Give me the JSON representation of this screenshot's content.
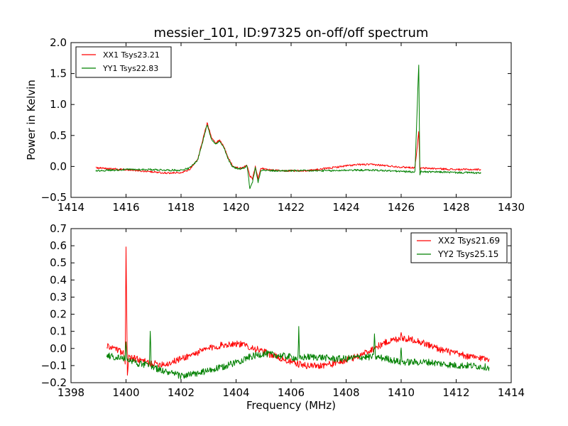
{
  "figure": {
    "title": "messier_101, ID:97325 on-off/off spectrum",
    "ylabel": "Power in Kelvin",
    "xlabel": "Frequency (MHz)"
  },
  "chart_data": [
    {
      "type": "line",
      "title": "messier_101, ID:97325 on-off/off spectrum",
      "xlabel": "",
      "ylabel": "Power in Kelvin",
      "xlim": [
        1414,
        1430
      ],
      "ylim": [
        -0.5,
        2.0
      ],
      "xticks": [
        1414,
        1416,
        1418,
        1420,
        1422,
        1424,
        1426,
        1428,
        1430
      ],
      "yticks": [
        -0.5,
        0.0,
        0.5,
        1.0,
        1.5,
        2.0
      ],
      "xtick_labels": [
        "1414",
        "1416",
        "1418",
        "1420",
        "1422",
        "1424",
        "1426",
        "1428",
        "1430"
      ],
      "ytick_labels": [
        "−0.5",
        "0.0",
        "0.5",
        "1.0",
        "1.5",
        "2.0"
      ],
      "grid": false,
      "legend": "top-left",
      "series": [
        {
          "name": "XX1 Tsys23.21",
          "color": "#ff0000",
          "x": [
            1414.9,
            1415.5,
            1416.0,
            1416.5,
            1417.0,
            1417.5,
            1418.0,
            1418.3,
            1418.6,
            1418.8,
            1418.95,
            1419.1,
            1419.25,
            1419.4,
            1419.55,
            1419.7,
            1419.85,
            1420.0,
            1420.2,
            1420.4,
            1420.5,
            1420.6,
            1420.7,
            1420.8,
            1420.9,
            1421.0,
            1421.3,
            1421.8,
            1422.5,
            1423.0,
            1423.5,
            1424.0,
            1424.5,
            1425.0,
            1425.5,
            1426.0,
            1426.5,
            1426.64,
            1426.68,
            1426.72,
            1427.0,
            1427.5,
            1428.0,
            1428.5,
            1428.9
          ],
          "y": [
            -0.02,
            -0.04,
            -0.05,
            -0.07,
            -0.09,
            -0.11,
            -0.1,
            -0.05,
            0.1,
            0.45,
            0.7,
            0.47,
            0.38,
            0.42,
            0.33,
            0.15,
            0.03,
            -0.02,
            -0.03,
            0.02,
            -0.15,
            -0.2,
            0.0,
            -0.2,
            -0.03,
            -0.04,
            -0.06,
            -0.07,
            -0.07,
            -0.05,
            -0.02,
            0.01,
            0.03,
            0.03,
            0.01,
            -0.01,
            -0.02,
            0.55,
            -0.05,
            -0.03,
            -0.03,
            -0.04,
            -0.05,
            -0.05,
            -0.05
          ]
        },
        {
          "name": "YY1 Tsys22.83",
          "color": "#008000",
          "x": [
            1414.9,
            1415.5,
            1416.0,
            1416.5,
            1417.0,
            1417.5,
            1418.0,
            1418.3,
            1418.6,
            1418.8,
            1418.95,
            1419.1,
            1419.25,
            1419.4,
            1419.55,
            1419.7,
            1419.85,
            1420.0,
            1420.2,
            1420.4,
            1420.5,
            1420.6,
            1420.7,
            1420.8,
            1420.9,
            1421.0,
            1421.3,
            1421.8,
            1422.5,
            1423.0,
            1423.5,
            1424.0,
            1424.5,
            1425.0,
            1425.5,
            1426.0,
            1426.5,
            1426.64,
            1426.68,
            1426.72,
            1427.0,
            1427.5,
            1428.0,
            1428.5,
            1428.9
          ],
          "y": [
            -0.07,
            -0.06,
            -0.05,
            -0.05,
            -0.05,
            -0.06,
            -0.06,
            -0.03,
            0.1,
            0.42,
            0.68,
            0.45,
            0.36,
            0.4,
            0.31,
            0.13,
            0.01,
            -0.03,
            -0.04,
            0.01,
            -0.35,
            -0.25,
            -0.02,
            -0.25,
            -0.06,
            -0.06,
            -0.07,
            -0.07,
            -0.07,
            -0.07,
            -0.07,
            -0.06,
            -0.06,
            -0.06,
            -0.07,
            -0.08,
            -0.09,
            1.65,
            -0.15,
            -0.08,
            -0.09,
            -0.09,
            -0.1,
            -0.1,
            -0.11
          ]
        }
      ]
    },
    {
      "type": "line",
      "title": "",
      "xlabel": "Frequency (MHz)",
      "ylabel": "",
      "xlim": [
        1398,
        1414
      ],
      "ylim": [
        -0.2,
        0.7
      ],
      "xticks": [
        1398,
        1400,
        1402,
        1404,
        1406,
        1408,
        1410,
        1412,
        1414
      ],
      "yticks": [
        -0.2,
        -0.1,
        0.0,
        0.1,
        0.2,
        0.3,
        0.4,
        0.5,
        0.6,
        0.7
      ],
      "xtick_labels": [
        "1398",
        "1400",
        "1402",
        "1404",
        "1406",
        "1408",
        "1410",
        "1412",
        "1414"
      ],
      "ytick_labels": [
        "−0.2",
        "−0.1",
        "0.0",
        "0.1",
        "0.2",
        "0.3",
        "0.4",
        "0.5",
        "0.6",
        "0.7"
      ],
      "grid": false,
      "legend": "top-right",
      "series": [
        {
          "name": "XX2 Tsys21.69",
          "color": "#ff0000",
          "x": [
            1399.3,
            1399.6,
            1399.9,
            1399.97,
            1400.0,
            1400.05,
            1400.1,
            1400.5,
            1401.0,
            1401.5,
            1402.0,
            1402.5,
            1403.0,
            1403.5,
            1404.0,
            1404.5,
            1405.0,
            1405.5,
            1406.0,
            1406.5,
            1407.0,
            1407.5,
            1408.0,
            1408.5,
            1409.0,
            1409.5,
            1409.97,
            1410.0,
            1410.03,
            1410.5,
            1411.0,
            1411.5,
            1412.0,
            1412.5,
            1413.2
          ],
          "y": [
            0.01,
            0.0,
            -0.03,
            -0.1,
            0.61,
            -0.15,
            -0.05,
            -0.07,
            -0.09,
            -0.09,
            -0.06,
            -0.03,
            0.0,
            0.02,
            0.03,
            0.01,
            -0.02,
            -0.05,
            -0.08,
            -0.1,
            -0.1,
            -0.09,
            -0.07,
            -0.04,
            0.0,
            0.04,
            0.06,
            0.11,
            0.06,
            0.05,
            0.02,
            -0.01,
            -0.03,
            -0.05,
            -0.06
          ]
        },
        {
          "name": "YY2 Tsys25.15",
          "color": "#008000",
          "x": [
            1399.3,
            1399.6,
            1399.97,
            1400.0,
            1400.03,
            1400.5,
            1400.85,
            1400.88,
            1400.91,
            1401.0,
            1401.5,
            1402.0,
            1402.5,
            1403.0,
            1403.5,
            1404.0,
            1404.5,
            1405.0,
            1405.5,
            1406.0,
            1406.25,
            1406.28,
            1406.31,
            1406.5,
            1407.0,
            1407.5,
            1408.0,
            1408.5,
            1409.0,
            1409.03,
            1409.06,
            1409.5,
            1409.97,
            1410.0,
            1410.03,
            1410.5,
            1411.0,
            1411.5,
            1412.0,
            1412.5,
            1413.2
          ],
          "y": [
            -0.04,
            -0.05,
            -0.06,
            0.05,
            -0.06,
            -0.09,
            -0.1,
            0.12,
            -0.1,
            -0.11,
            -0.14,
            -0.16,
            -0.15,
            -0.13,
            -0.11,
            -0.08,
            -0.05,
            -0.03,
            -0.04,
            -0.05,
            -0.06,
            0.11,
            -0.06,
            -0.05,
            -0.05,
            -0.06,
            -0.06,
            -0.05,
            -0.05,
            0.1,
            -0.05,
            -0.06,
            -0.08,
            0.01,
            -0.08,
            -0.08,
            -0.08,
            -0.09,
            -0.1,
            -0.1,
            -0.11
          ]
        }
      ]
    }
  ]
}
